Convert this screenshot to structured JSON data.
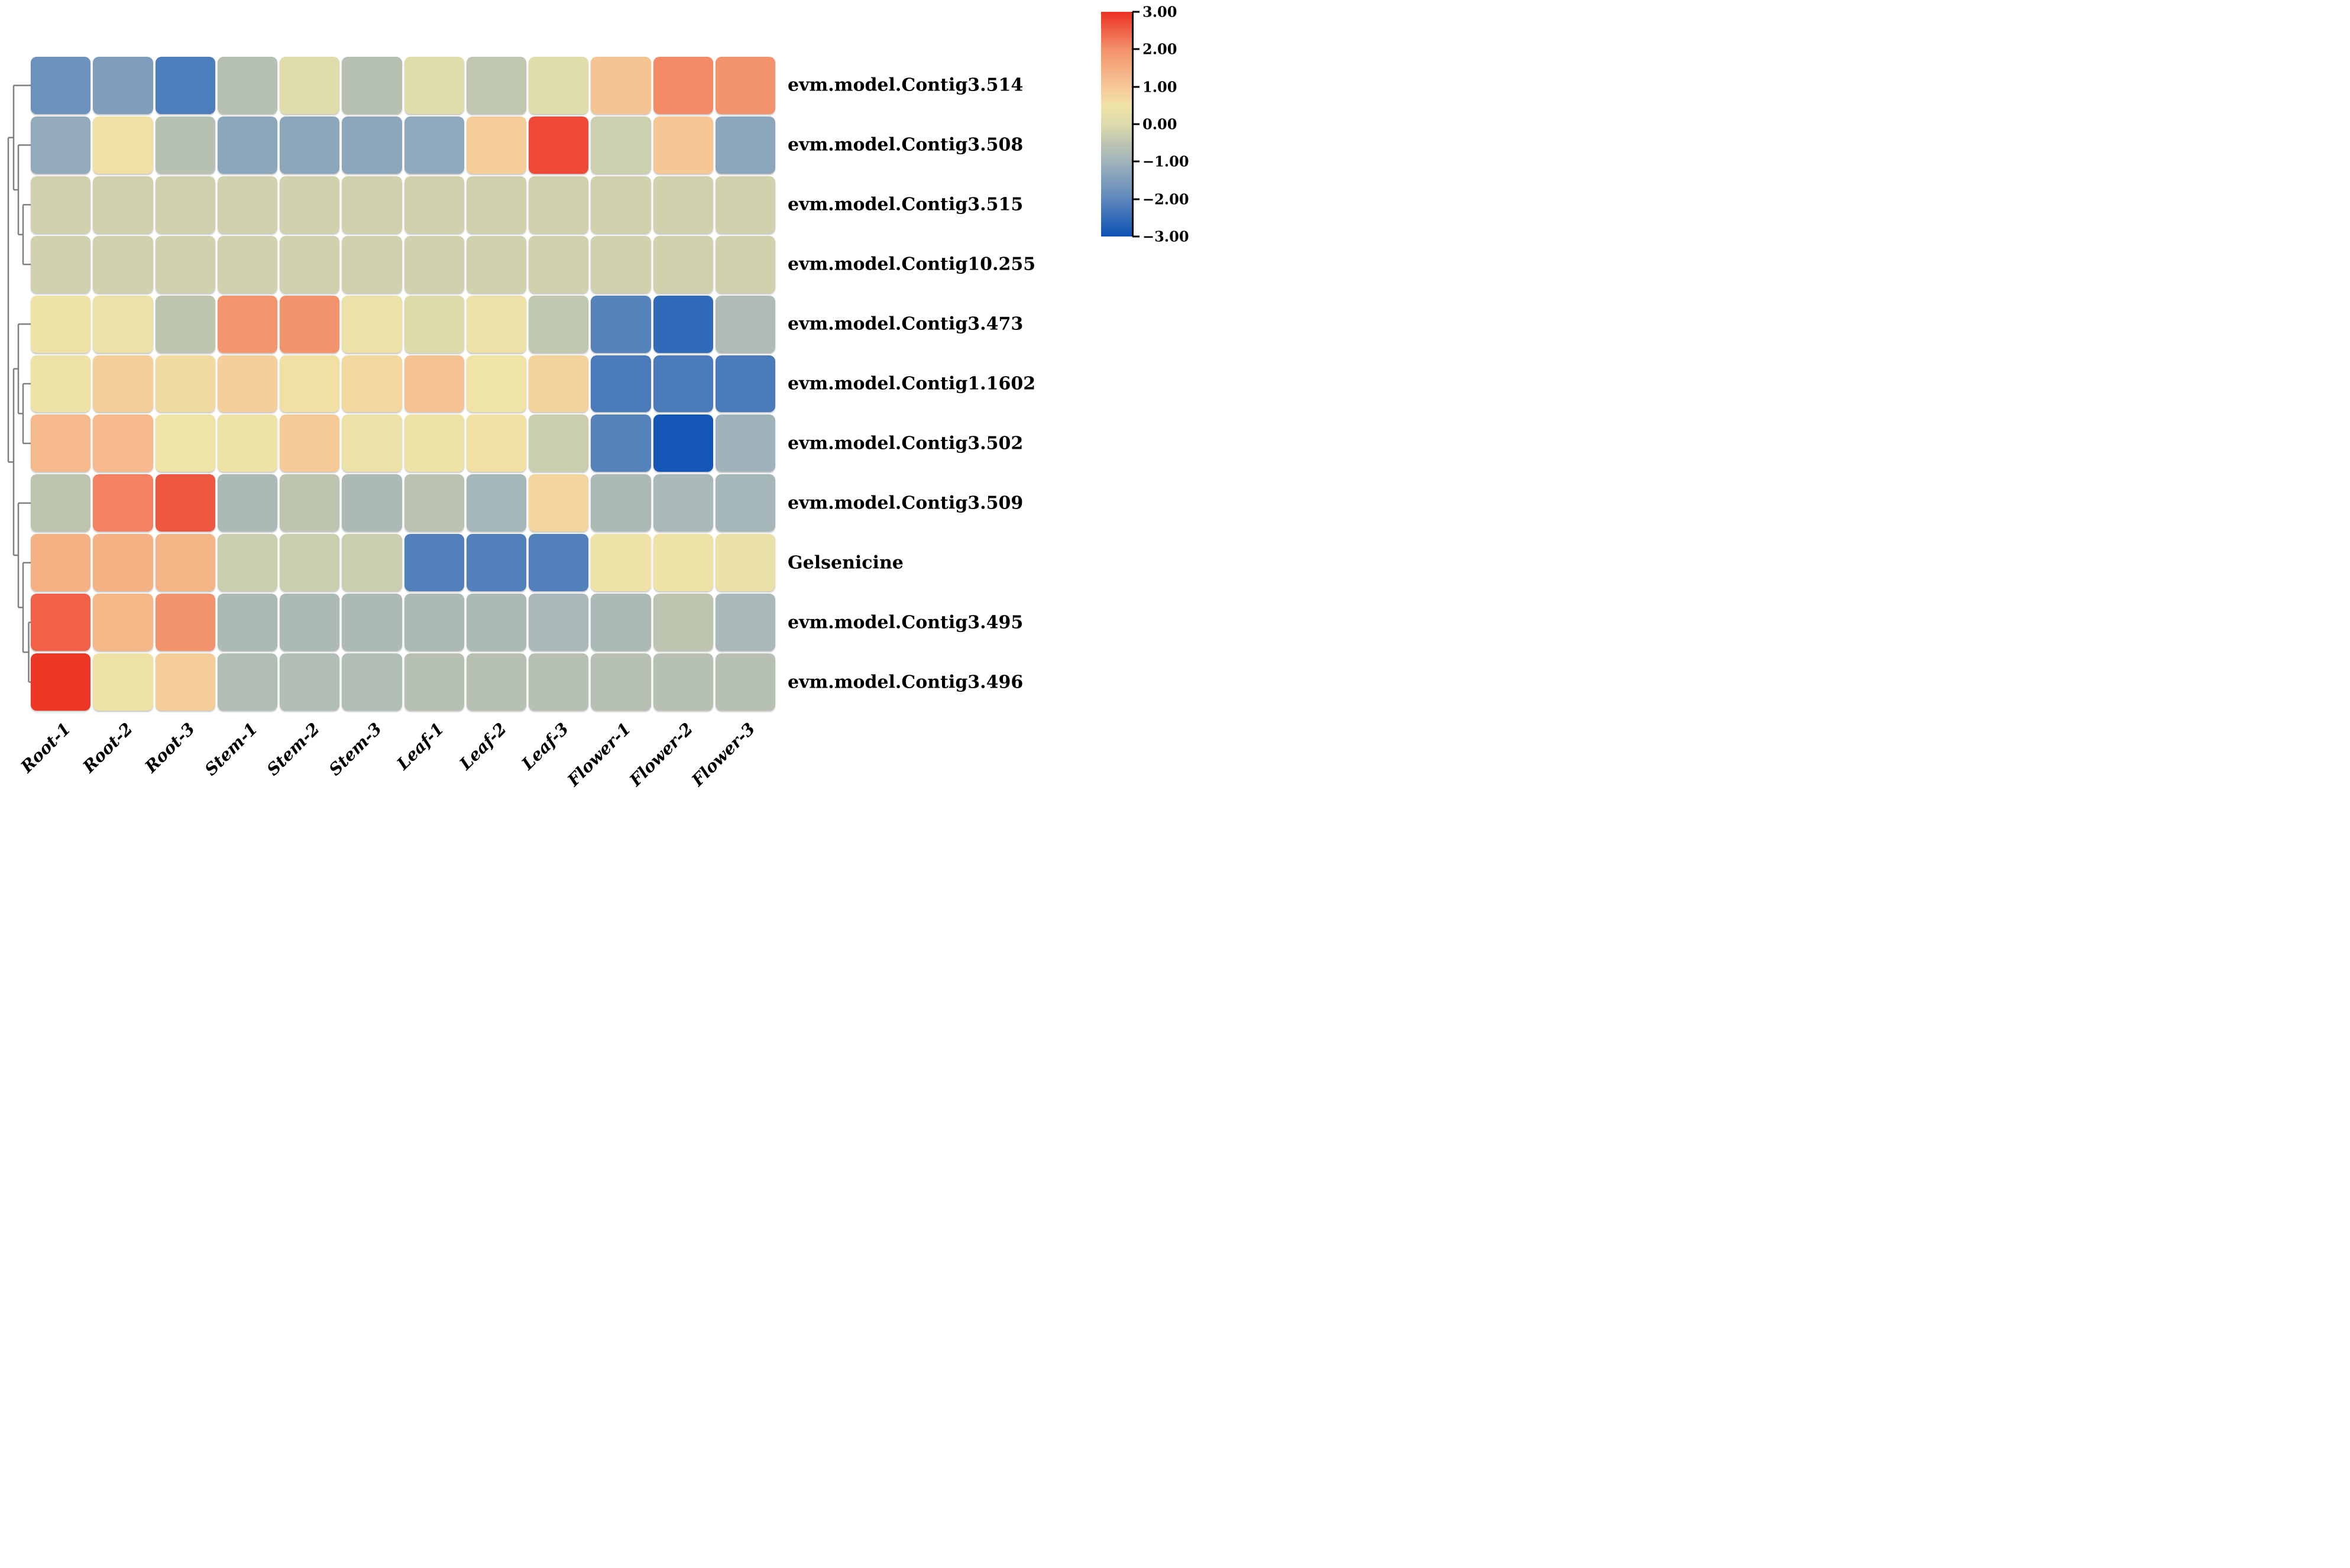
{
  "chart_data": {
    "type": "heatmap",
    "legend_position": "top-right colorbar",
    "grid": "off",
    "columns": [
      "Root-1",
      "Root-2",
      "Root-3",
      "Stem-1",
      "Stem-2",
      "Stem-3",
      "Leaf-1",
      "Leaf-2",
      "Leaf-3",
      "Flower-1",
      "Flower-2",
      "Flower-3"
    ],
    "rows": [
      "evm.model.Contig3.514",
      "evm.model.Contig3.508",
      "evm.model.Contig3.515",
      "evm.model.Contig10.255",
      "evm.model.Contig3.473",
      "evm.model.Contig1.1602",
      "evm.model.Contig3.502",
      "evm.model.Contig3.509",
      "Gelsenicine",
      "evm.model.Contig3.495",
      "evm.model.Contig3.496"
    ],
    "values": [
      [
        -1.8,
        -1.5,
        -2.2,
        -0.6,
        0.1,
        -0.6,
        0.1,
        -0.45,
        0.1,
        1.05,
        2.05,
        1.95
      ],
      [
        -1.2,
        0.55,
        -0.6,
        -1.3,
        -1.3,
        -1.3,
        -1.25,
        0.9,
        2.75,
        -0.25,
        1.0,
        -1.3
      ],
      [
        -0.2,
        -0.2,
        -0.2,
        -0.2,
        -0.2,
        -0.2,
        -0.2,
        -0.2,
        -0.2,
        -0.2,
        -0.2,
        -0.2
      ],
      [
        -0.2,
        -0.2,
        -0.2,
        -0.2,
        -0.2,
        -0.2,
        -0.2,
        -0.2,
        -0.2,
        -0.2,
        -0.2,
        -0.2
      ],
      [
        0.45,
        0.4,
        -0.5,
        1.9,
        1.95,
        0.4,
        0.0,
        0.4,
        -0.45,
        -2.1,
        -2.55,
        -0.75
      ],
      [
        0.45,
        0.85,
        0.65,
        0.85,
        0.55,
        0.7,
        1.1,
        0.5,
        0.8,
        -2.25,
        -2.25,
        -2.25
      ],
      [
        1.25,
        1.25,
        0.5,
        0.45,
        0.95,
        0.4,
        0.45,
        0.55,
        -0.3,
        -2.1,
        -2.9,
        -1.0
      ],
      [
        -0.5,
        2.15,
        2.6,
        -0.8,
        -0.5,
        -0.8,
        -0.55,
        -0.9,
        0.75,
        -0.8,
        -0.85,
        -0.9
      ],
      [
        1.4,
        1.4,
        1.35,
        -0.3,
        -0.3,
        -0.3,
        -2.15,
        -2.15,
        -2.15,
        0.45,
        0.45,
        0.35
      ],
      [
        2.5,
        1.3,
        1.95,
        -0.8,
        -0.8,
        -0.8,
        -0.8,
        -0.8,
        -0.85,
        -0.8,
        -0.5,
        -0.85
      ],
      [
        2.95,
        0.45,
        0.9,
        -0.7,
        -0.7,
        -0.7,
        -0.6,
        -0.6,
        -0.6,
        -0.6,
        -0.6,
        -0.6
      ]
    ],
    "value_range": [
      -3,
      3
    ],
    "colorbar": {
      "tick_labels": [
        "3.00",
        "2.00",
        "1.00",
        "0.00",
        "−1.00",
        "−2.00",
        "−3.00"
      ],
      "tick_values": [
        3,
        2,
        1,
        0,
        -1,
        -2,
        -3
      ]
    },
    "colormap_stops": [
      [
        -3.0,
        "#0D51B5"
      ],
      [
        -2.0,
        "#5E88BC"
      ],
      [
        -1.0,
        "#A0B3BB"
      ],
      [
        -0.5,
        "#BDC5B1"
      ],
      [
        0.0,
        "#DDDBAC"
      ],
      [
        0.5,
        "#F0E3A6"
      ],
      [
        1.0,
        "#F5C795"
      ],
      [
        2.0,
        "#F3906B"
      ],
      [
        3.0,
        "#EC3223"
      ]
    ],
    "row_dendrogram_tree": [
      [
        0,
        [
          1,
          [
            2,
            3
          ]
        ]
      ],
      [
        [
          4,
          [
            5,
            6
          ]
        ],
        [
          7,
          [
            8,
            [
              9,
              10
            ]
          ]
        ]
      ]
    ],
    "dendrogram_line_color": "#7f7f7f"
  }
}
